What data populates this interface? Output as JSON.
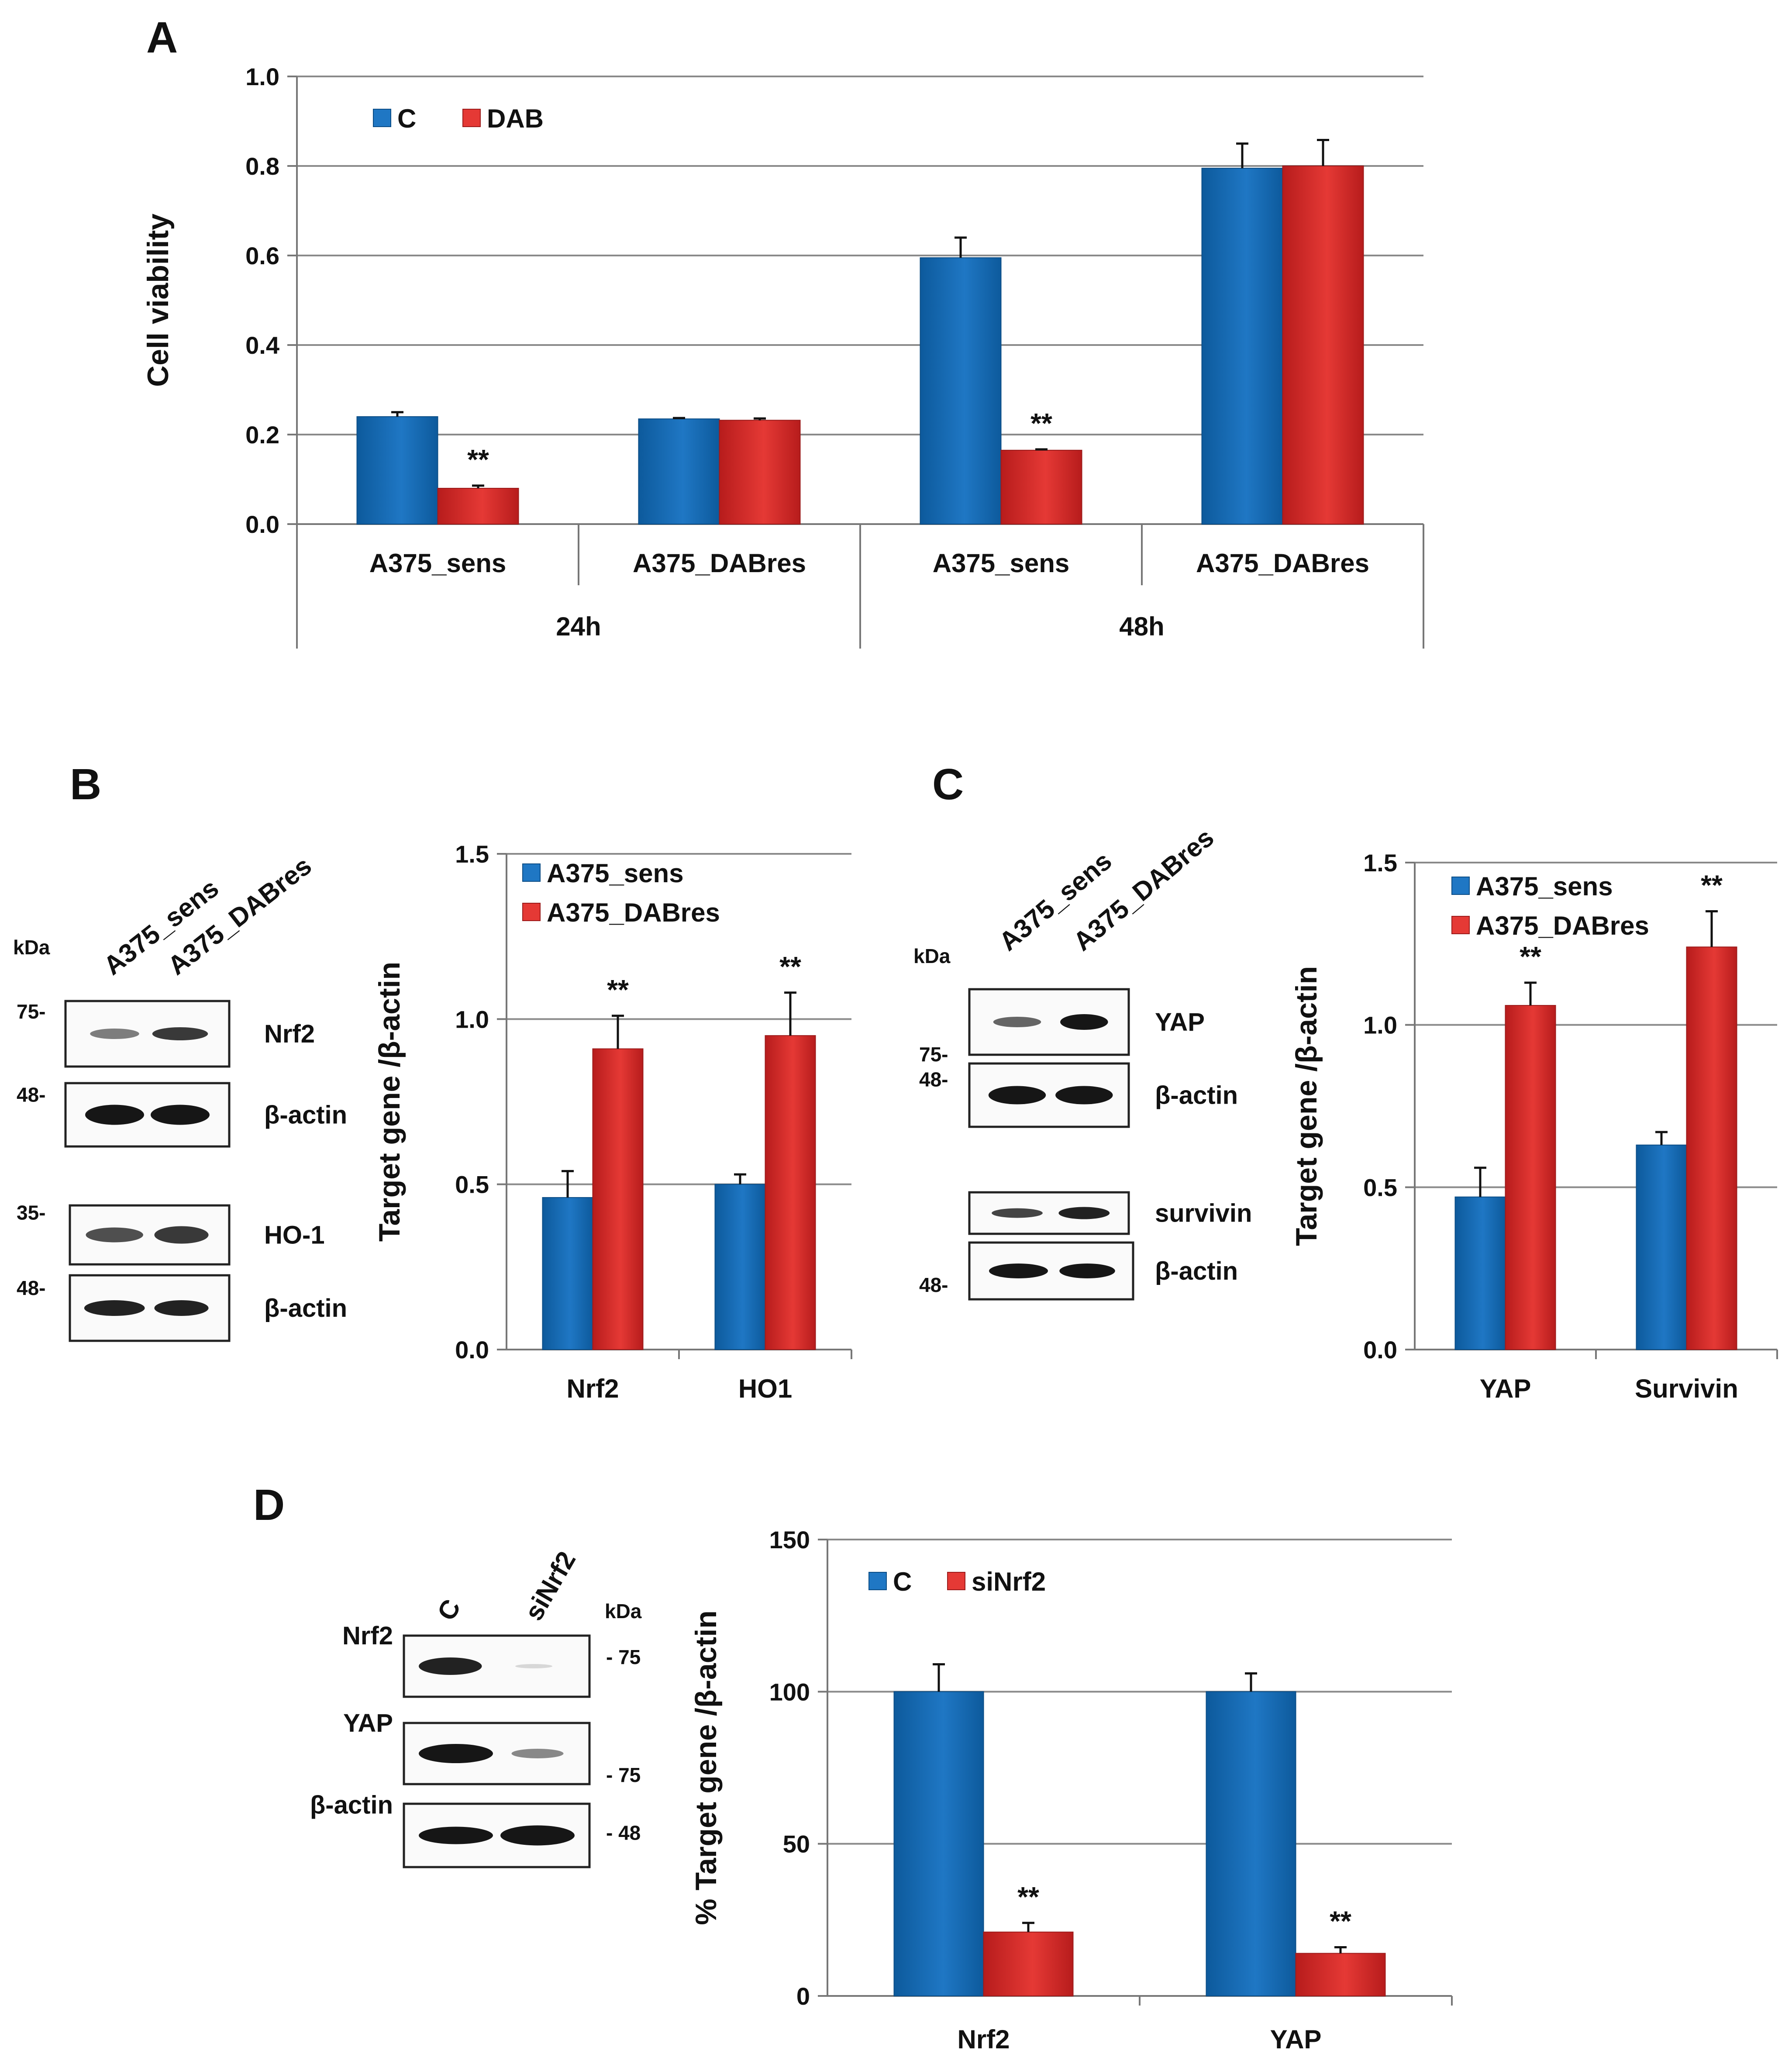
{
  "panels": {
    "A": "A",
    "B": "B",
    "C": "C",
    "D": "D"
  },
  "colors": {
    "blue": "#1f77c4",
    "blueDark": "#0d5a9c",
    "red": "#e53935",
    "redDark": "#b71c1c"
  },
  "chart_data": [
    {
      "id": "A",
      "type": "bar",
      "ylabel": "Cell viability",
      "ylim": [
        0,
        1.0
      ],
      "yticks": [
        "0.0",
        "0.2",
        "0.4",
        "0.6",
        "0.8",
        "1.0"
      ],
      "categories": [
        "A375_sens",
        "A375_DABres",
        "A375_sens",
        "A375_DABres"
      ],
      "groups": [
        "24h",
        "48h"
      ],
      "series": [
        {
          "name": "C",
          "values": [
            0.24,
            0.235,
            0.595,
            0.795
          ],
          "errors": [
            0.01,
            0.002,
            0.045,
            0.055
          ]
        },
        {
          "name": "DAB",
          "values": [
            0.08,
            0.232,
            0.165,
            0.8
          ],
          "errors": [
            0.006,
            0.004,
            0.002,
            0.058
          ]
        }
      ],
      "annotations": [
        "**",
        "",
        "**",
        ""
      ]
    },
    {
      "id": "B",
      "type": "bar",
      "ylabel": "Target gene /β-actin",
      "ylim": [
        0,
        1.5
      ],
      "yticks": [
        "0.0",
        "0.5",
        "1.0",
        "1.5"
      ],
      "categories": [
        "Nrf2",
        "HO1"
      ],
      "series": [
        {
          "name": "A375_sens",
          "values": [
            0.46,
            0.5
          ],
          "errors": [
            0.08,
            0.03
          ]
        },
        {
          "name": "A375_DABres",
          "values": [
            0.91,
            0.95
          ],
          "errors": [
            0.1,
            0.13
          ]
        }
      ],
      "annotations": [
        "**",
        "**"
      ]
    },
    {
      "id": "C",
      "type": "bar",
      "ylabel": "Target gene /β-actin",
      "ylim": [
        0,
        1.5
      ],
      "yticks": [
        "0.0",
        "0.5",
        "1.0",
        "1.5"
      ],
      "categories": [
        "YAP",
        "Survivin"
      ],
      "series": [
        {
          "name": "A375_sens",
          "values": [
            0.47,
            0.63
          ],
          "errors": [
            0.09,
            0.04
          ]
        },
        {
          "name": "A375_DABres",
          "values": [
            1.06,
            1.24
          ],
          "errors": [
            0.07,
            0.11
          ]
        }
      ],
      "annotations": [
        "**",
        "**"
      ]
    },
    {
      "id": "D",
      "type": "bar",
      "ylabel": "% Target gene /β-actin",
      "ylim": [
        0,
        150
      ],
      "yticks": [
        "0",
        "50",
        "100",
        "150"
      ],
      "categories": [
        "Nrf2",
        "YAP"
      ],
      "series": [
        {
          "name": "C",
          "values": [
            100,
            100
          ],
          "errors": [
            9,
            6
          ]
        },
        {
          "name": "siNrf2",
          "values": [
            21,
            14
          ],
          "errors": [
            3,
            2
          ]
        }
      ],
      "annotations": [
        "**",
        "**"
      ]
    }
  ],
  "blots": {
    "B": {
      "lanes": [
        "A375_sens",
        "A375_DABres"
      ],
      "kda_label": "kDa",
      "rows": [
        {
          "label": "Nrf2",
          "kda": "75-"
        },
        {
          "label": "β-actin",
          "kda": "48-"
        },
        {
          "label": "HO-1",
          "kda": "35-"
        },
        {
          "label": "β-actin",
          "kda": "48-"
        }
      ]
    },
    "C": {
      "lanes": [
        "A375_sens",
        "A375_DABres"
      ],
      "kda_label": "kDa",
      "rows": [
        {
          "label": "YAP",
          "kda": "75-"
        },
        {
          "label": "β-actin",
          "kda": "48-"
        },
        {
          "label": "survivin",
          "kda": ""
        },
        {
          "label": "β-actin",
          "kda": "48-"
        }
      ]
    },
    "D": {
      "lanes": [
        "C",
        "siNrf2"
      ],
      "kda_label": "kDa",
      "rows": [
        {
          "label": "Nrf2",
          "kda": "- 75"
        },
        {
          "label": "YAP",
          "kda": "- 75"
        },
        {
          "label": "β-actin",
          "kda": "- 48"
        }
      ]
    }
  }
}
